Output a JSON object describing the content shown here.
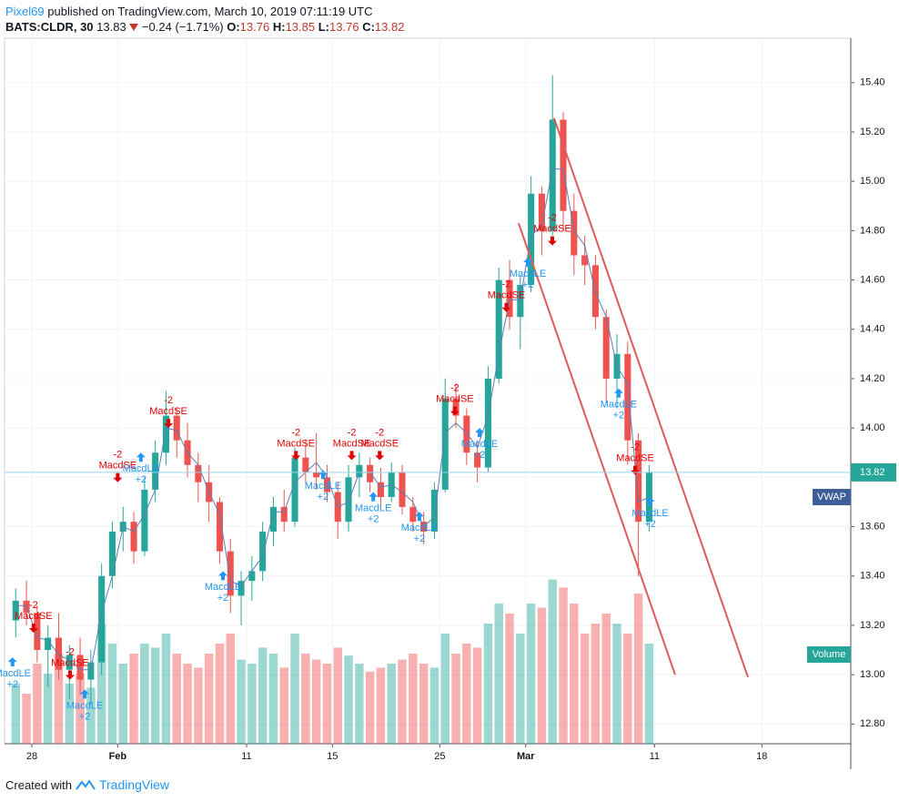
{
  "header": {
    "author": "Pixel69",
    "published": "published on TradingView.com, March 10, 2019 07:11:19 UTC",
    "symbol": "BATS:CLDR, 30",
    "last": "13.83",
    "change": "−0.24 (−1.71%)",
    "o_label": "O:",
    "o": "13.76",
    "h_label": "H:",
    "h": "13.85",
    "l_label": "L:",
    "l": "13.76",
    "c_label": "C:",
    "c": "13.82"
  },
  "footer": {
    "text": "Created with",
    "brand": "TradingView"
  },
  "chart_data": {
    "type": "candlestick",
    "x": [
      -0.75,
      -0.25,
      0.25,
      0.75,
      1.25,
      1.75,
      2.25,
      2.75,
      3.25,
      3.75,
      4.25,
      4.75,
      5.25,
      5.75,
      6.25,
      6.75,
      7.25,
      7.75,
      8.25,
      8.75,
      9.25,
      9.75,
      10.25,
      10.75,
      11.25,
      11.75,
      12.25,
      12.75,
      13.25,
      13.75,
      14.25,
      14.75,
      15.25,
      15.75,
      16.25,
      16.75,
      17.25,
      17.75,
      18.25,
      18.75,
      19.25,
      19.75,
      20.25,
      20.75,
      21.25,
      21.75,
      22.25,
      22.75,
      23.25,
      23.75,
      24.25,
      24.75,
      25.25,
      25.75,
      26.25,
      26.75,
      27.25,
      27.75,
      28.25,
      28.75
    ],
    "open": [
      13.22,
      13.3,
      13.25,
      13.1,
      13.15,
      13.02,
      13.08,
      12.98,
      13.05,
      13.4,
      13.58,
      13.62,
      13.5,
      13.75,
      13.9,
      14.05,
      13.95,
      13.85,
      13.78,
      13.7,
      13.5,
      13.32,
      13.38,
      13.42,
      13.58,
      13.68,
      13.62,
      13.88,
      13.82,
      13.8,
      13.74,
      13.62,
      13.8,
      13.85,
      13.78,
      13.72,
      13.82,
      13.68,
      13.62,
      13.58,
      13.75,
      14.12,
      14.05,
      13.9,
      13.84,
      14.2,
      14.6,
      14.45,
      14.58,
      14.95,
      14.8,
      15.25,
      14.88,
      14.7,
      14.66,
      14.45,
      14.2,
      14.3,
      13.95,
      13.62
    ],
    "high": [
      13.35,
      13.38,
      13.28,
      13.2,
      13.25,
      13.12,
      13.15,
      13.1,
      13.45,
      13.62,
      13.68,
      13.66,
      13.8,
      13.95,
      14.15,
      14.08,
      14.02,
      13.9,
      13.85,
      13.72,
      13.55,
      13.42,
      13.48,
      13.62,
      13.72,
      13.75,
      13.92,
      13.95,
      13.98,
      13.85,
      13.78,
      13.85,
      13.9,
      13.88,
      13.84,
      13.86,
      13.85,
      13.72,
      13.66,
      13.78,
      14.2,
      14.18,
      14.08,
      13.95,
      14.25,
      14.65,
      14.68,
      14.62,
      15.02,
      14.98,
      15.43,
      15.28,
      14.95,
      14.78,
      14.7,
      14.48,
      14.38,
      14.35,
      13.98,
      13.85
    ],
    "low": [
      13.15,
      13.2,
      13.05,
      12.95,
      12.98,
      12.9,
      12.92,
      12.88,
      13.0,
      13.35,
      13.5,
      13.45,
      13.48,
      13.7,
      13.85,
      13.88,
      13.8,
      13.7,
      13.62,
      13.45,
      13.25,
      13.2,
      13.3,
      13.38,
      13.52,
      13.58,
      13.6,
      13.78,
      13.75,
      13.7,
      13.55,
      13.58,
      13.72,
      13.74,
      13.68,
      13.7,
      13.65,
      13.58,
      13.53,
      13.55,
      13.74,
      14.0,
      13.85,
      13.78,
      13.82,
      14.18,
      14.4,
      14.32,
      14.55,
      14.7,
      14.78,
      14.8,
      14.62,
      14.58,
      14.4,
      14.1,
      14.08,
      13.85,
      13.4,
      13.58
    ],
    "close": [
      13.3,
      13.25,
      13.1,
      13.15,
      13.02,
      13.08,
      12.98,
      13.05,
      13.4,
      13.58,
      13.62,
      13.5,
      13.75,
      13.9,
      14.05,
      13.95,
      13.85,
      13.78,
      13.7,
      13.5,
      13.32,
      13.38,
      13.42,
      13.58,
      13.68,
      13.62,
      13.88,
      13.82,
      13.8,
      13.74,
      13.62,
      13.8,
      13.85,
      13.78,
      13.72,
      13.82,
      13.68,
      13.62,
      13.58,
      13.75,
      14.12,
      14.05,
      13.9,
      13.84,
      14.2,
      14.6,
      14.45,
      14.58,
      14.95,
      14.8,
      15.25,
      14.88,
      14.7,
      14.66,
      14.45,
      14.2,
      14.3,
      13.95,
      13.62,
      13.82
    ],
    "up_color": "#26a69a",
    "down_color": "#ef5350",
    "vwap": {
      "name": "VWAP",
      "color": "#5b7fb5",
      "values": [
        13.28,
        13.28,
        13.15,
        13.14,
        13.08,
        13.06,
        13.02,
        13.02,
        13.25,
        13.4,
        13.6,
        13.58,
        13.65,
        13.75,
        14.0,
        13.99,
        13.9,
        13.85,
        13.74,
        13.65,
        13.38,
        13.36,
        13.42,
        13.48,
        13.66,
        13.66,
        13.78,
        13.82,
        13.86,
        13.8,
        13.68,
        13.7,
        13.82,
        13.82,
        13.76,
        13.77,
        13.74,
        13.7,
        13.6,
        13.64,
        13.98,
        14.02,
        13.98,
        13.92,
        14.05,
        14.3,
        14.52,
        14.52,
        14.78,
        14.82,
        15.05,
        15.05,
        14.8,
        14.74,
        14.55,
        14.45,
        14.25,
        14.18,
        13.7,
        13.72
      ]
    },
    "volume": {
      "name": "Volume",
      "values": [
        30,
        25,
        40,
        35,
        45,
        30,
        35,
        28,
        60,
        50,
        40,
        45,
        50,
        48,
        55,
        45,
        40,
        38,
        45,
        50,
        55,
        42,
        40,
        48,
        45,
        38,
        55,
        45,
        42,
        40,
        48,
        44,
        40,
        36,
        38,
        40,
        42,
        45,
        40,
        38,
        55,
        45,
        50,
        48,
        60,
        70,
        65,
        55,
        70,
        68,
        82,
        78,
        70,
        55,
        60,
        65,
        60,
        55,
        75,
        50
      ]
    },
    "volume_ylim": [
      0,
      100
    ],
    "xlim": [
      -1.27,
      38.14
    ],
    "xticks": [
      {
        "value": 0,
        "label": "28"
      },
      {
        "value": 4,
        "label": "Feb"
      },
      {
        "value": 10,
        "label": "11"
      },
      {
        "value": 14,
        "label": "15"
      },
      {
        "value": 19,
        "label": "25"
      },
      {
        "value": 23,
        "label": "Mar"
      },
      {
        "value": 29,
        "label": "11"
      },
      {
        "value": 34,
        "label": "18"
      }
    ],
    "ylim": [
      12.72,
      15.58
    ],
    "yticks": [
      {
        "value": 12.8,
        "label": "12.80"
      },
      {
        "value": 13.0,
        "label": "13.00"
      },
      {
        "value": 13.2,
        "label": "13.20"
      },
      {
        "value": 13.4,
        "label": "13.40"
      },
      {
        "value": 13.6,
        "label": "13.60"
      },
      {
        "value": 13.8,
        "label": "13.80"
      },
      {
        "value": 14.0,
        "label": "14.00"
      },
      {
        "value": 14.2,
        "label": "14.20"
      },
      {
        "value": 14.4,
        "label": "14.40"
      },
      {
        "value": 14.6,
        "label": "14.60"
      },
      {
        "value": 14.8,
        "label": "14.80"
      },
      {
        "value": 15.0,
        "label": "15.00"
      },
      {
        "value": 15.2,
        "label": "15.20"
      },
      {
        "value": 15.4,
        "label": "15.40"
      }
    ],
    "grid": true,
    "last_price": {
      "value": 13.82,
      "label": "13.82"
    },
    "trendlines": [
      {
        "x": [
          22.67,
          29.96
        ],
        "y": [
          14.83,
          13.0
        ],
        "color": "#e05a5a"
      },
      {
        "x": [
          24.32,
          33.35
        ],
        "y": [
          15.256,
          12.99
        ],
        "color": "#e05a5a"
      }
    ],
    "signals": [
      {
        "side": "long",
        "x": -0.9,
        "price": 13.07,
        "label": "MacdLE",
        "qty": "+2"
      },
      {
        "side": "short",
        "x": 0.08,
        "price": 13.17,
        "label": "MacdSE",
        "qty": "-2"
      },
      {
        "side": "short",
        "x": 1.78,
        "price": 12.98,
        "label": "MacdSE",
        "qty": "-2"
      },
      {
        "side": "long",
        "x": 2.46,
        "price": 12.94,
        "label": "MacdLE",
        "qty": "+2"
      },
      {
        "side": "short",
        "x": 4.0,
        "price": 13.78,
        "label": "MacdSE",
        "qty": "-2"
      },
      {
        "side": "long",
        "x": 5.08,
        "price": 13.9,
        "label": "MacdLE",
        "qty": "+2"
      },
      {
        "side": "short",
        "x": 6.36,
        "price": 14.0,
        "label": "MacdSE",
        "qty": "-2"
      },
      {
        "side": "long",
        "x": 8.9,
        "price": 13.42,
        "label": "MacdLE",
        "qty": "+2"
      },
      {
        "side": "short",
        "x": 12.3,
        "price": 13.87,
        "label": "MacdSE",
        "qty": "-2"
      },
      {
        "side": "long",
        "x": 13.56,
        "price": 13.83,
        "label": "MacdLE",
        "qty": "+2"
      },
      {
        "side": "short",
        "x": 14.9,
        "price": 13.87,
        "label": "MacdSE",
        "qty": "-2"
      },
      {
        "side": "long",
        "x": 15.9,
        "price": 13.74,
        "label": "MacdLE",
        "qty": "+2"
      },
      {
        "side": "short",
        "x": 16.2,
        "price": 13.87,
        "label": "MacdSE",
        "qty": "-2"
      },
      {
        "side": "long",
        "x": 18.05,
        "price": 13.66,
        "label": "MacdLE",
        "qty": "+2"
      },
      {
        "side": "short",
        "x": 19.7,
        "price": 14.05,
        "label": "MacdSE",
        "qty": "-2"
      },
      {
        "side": "long",
        "x": 20.85,
        "price": 14.0,
        "label": "MacdLE",
        "qty": "+2"
      },
      {
        "side": "short",
        "x": 22.1,
        "price": 14.47,
        "label": "MacdSE",
        "qty": "-2"
      },
      {
        "side": "long",
        "x": 23.1,
        "price": 14.69,
        "label": "MacdLE",
        "qty": "+2"
      },
      {
        "side": "short",
        "x": 24.24,
        "price": 14.74,
        "label": "MacdSE",
        "qty": "-2"
      },
      {
        "side": "long",
        "x": 27.33,
        "price": 14.16,
        "label": "MacdLE",
        "qty": "+2"
      },
      {
        "side": "short",
        "x": 28.1,
        "price": 13.81,
        "label": "MacdSE",
        "qty": "-2"
      },
      {
        "side": "long",
        "x": 28.8,
        "price": 13.72,
        "label": "MacdLE",
        "qty": "+2"
      }
    ]
  }
}
